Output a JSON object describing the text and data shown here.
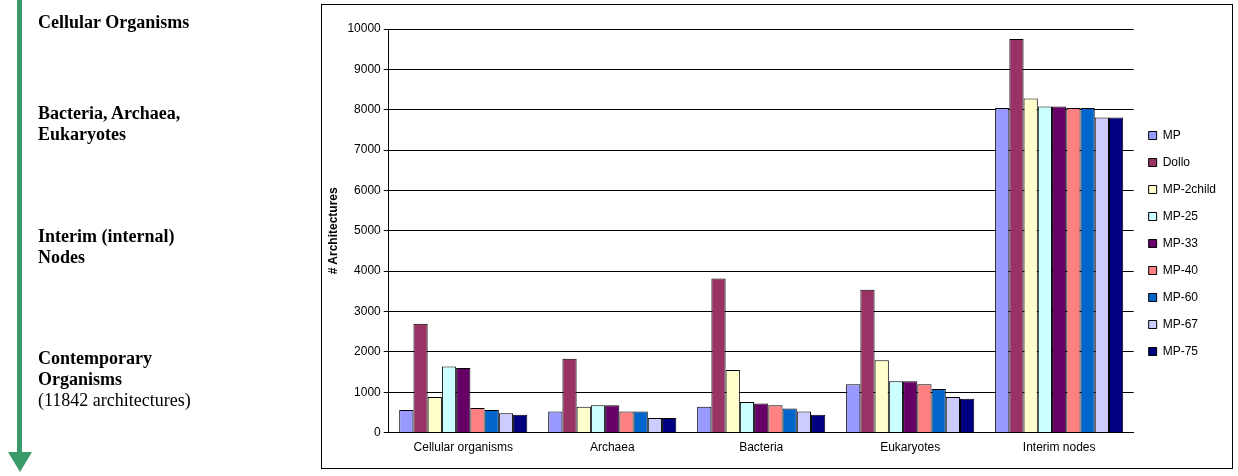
{
  "chart_data": {
    "type": "bar",
    "ylabel": "# Architectures",
    "categories": [
      "Cellular organisms",
      "Archaea",
      "Bacteria",
      "Eukaryotes",
      "Interim nodes"
    ],
    "series": [
      {
        "name": "MP",
        "color": "#9999ff",
        "values": [
          560,
          520,
          640,
          1200,
          8040
        ]
      },
      {
        "name": "Dollo",
        "color": "#993366",
        "values": [
          2700,
          1830,
          3820,
          3540,
          9750
        ]
      },
      {
        "name": "MP-2child",
        "color": "#ffffcc",
        "values": [
          880,
          640,
          1550,
          1790,
          8280
        ]
      },
      {
        "name": "MP-25",
        "color": "#ccffff",
        "values": [
          1640,
          680,
          760,
          1270,
          8080
        ]
      },
      {
        "name": "MP-33",
        "color": "#660066",
        "values": [
          1600,
          680,
          720,
          1270,
          8080
        ]
      },
      {
        "name": "MP-40",
        "color": "#ff8080",
        "values": [
          610,
          520,
          680,
          1200,
          8040
        ]
      },
      {
        "name": "MP-60",
        "color": "#0066cc",
        "values": [
          560,
          520,
          600,
          1080,
          8040
        ]
      },
      {
        "name": "MP-67",
        "color": "#ccccff",
        "values": [
          480,
          360,
          520,
          880,
          7810
        ]
      },
      {
        "name": "MP-75",
        "color": "#000080",
        "values": [
          440,
          360,
          440,
          840,
          7810
        ]
      }
    ],
    "ylim": [
      0,
      10000
    ],
    "yticks": [
      0,
      1000,
      2000,
      3000,
      4000,
      5000,
      6000,
      7000,
      8000,
      9000,
      10000
    ],
    "grid": "y",
    "legend": "right",
    "annotations": [
      "Cellular Organisms",
      "Bacteria, Archaea, Eukaryotes",
      "Interim (internal) Nodes",
      "Contemporary Organisms",
      "(11842 architectures)"
    ]
  }
}
